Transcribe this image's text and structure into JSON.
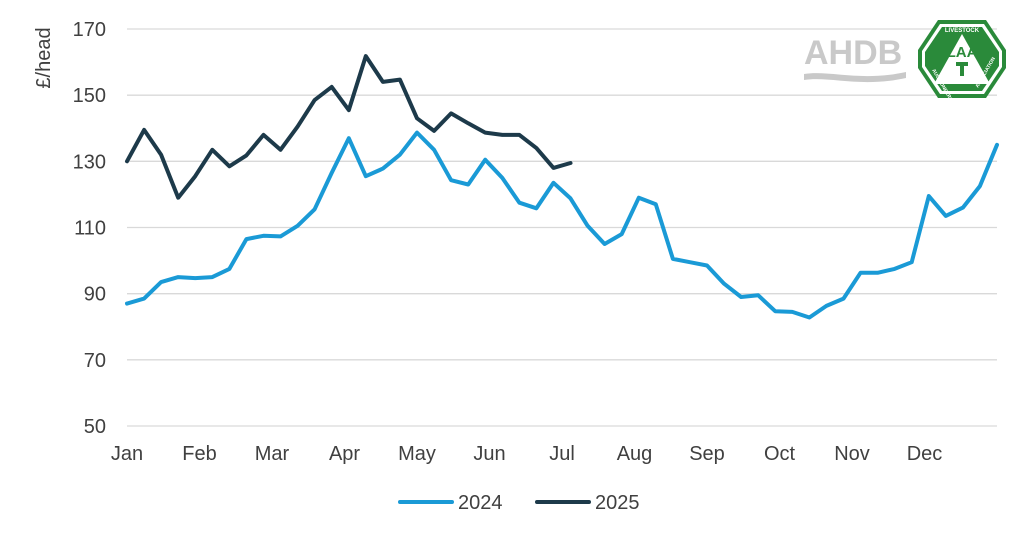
{
  "chart_data": {
    "type": "line",
    "ylabel": "£/head",
    "ylim": [
      50,
      170
    ],
    "yticks": [
      50,
      70,
      90,
      110,
      130,
      150,
      170
    ],
    "x_months": [
      "Jan",
      "Feb",
      "Mar",
      "Apr",
      "May",
      "Jun",
      "Jul",
      "Aug",
      "Sep",
      "Oct",
      "Nov",
      "Dec"
    ],
    "grid": true,
    "legend": "bottom-center",
    "series": [
      {
        "name": "2024",
        "color": "#1a9ad6",
        "x": [
          1,
          2,
          3,
          4,
          5,
          6,
          7,
          8,
          9,
          10,
          11,
          12,
          13,
          14,
          15,
          16,
          17,
          18,
          19,
          20,
          21,
          22,
          23,
          24,
          25,
          26,
          27,
          28,
          29,
          30,
          31,
          32,
          33,
          34,
          35,
          36,
          37,
          38,
          39,
          40,
          41,
          42,
          43,
          44,
          45,
          46,
          47,
          48,
          49,
          50,
          51,
          52
        ],
        "values": [
          87,
          88.5,
          93.5,
          95,
          94.7,
          95,
          97.5,
          106.5,
          107.5,
          107.3,
          110.5,
          115.5,
          126.5,
          137,
          125.5,
          127.8,
          132,
          138.7,
          133.5,
          124.3,
          123,
          130.5,
          125,
          117.5,
          115.8,
          123.5,
          118.8,
          110.5,
          105,
          108,
          119,
          117,
          100.5,
          99.5,
          98.5,
          93,
          89,
          89.5,
          84.7,
          84.5,
          82.8,
          86.3,
          88.5,
          96.3,
          96.3,
          97.5,
          99.5,
          119.5,
          113.5,
          116,
          122.5,
          135
        ]
      },
      {
        "name": "2025",
        "color": "#1d3a4a",
        "x": [
          1,
          2,
          3,
          4,
          5,
          6,
          7,
          8,
          9,
          10,
          11,
          12,
          13,
          14,
          15,
          16,
          17,
          18,
          19,
          20,
          21,
          22,
          23,
          24,
          25,
          26,
          27
        ],
        "values": [
          130,
          139.5,
          132,
          119,
          125.5,
          133.5,
          128.5,
          131.8,
          138,
          133.5,
          140.5,
          148.5,
          152.5,
          145.5,
          161.8,
          154,
          154.7,
          143,
          139.2,
          144.5,
          141.5,
          138.7,
          138,
          138,
          134,
          128,
          129.5
        ]
      }
    ]
  },
  "logos": {
    "ahdb": "AHDB",
    "laa": "LAA",
    "laa_top": "LIVESTOCK",
    "laa_left": "AUCTIONEERS",
    "laa_right": "ASSOCIATION"
  }
}
